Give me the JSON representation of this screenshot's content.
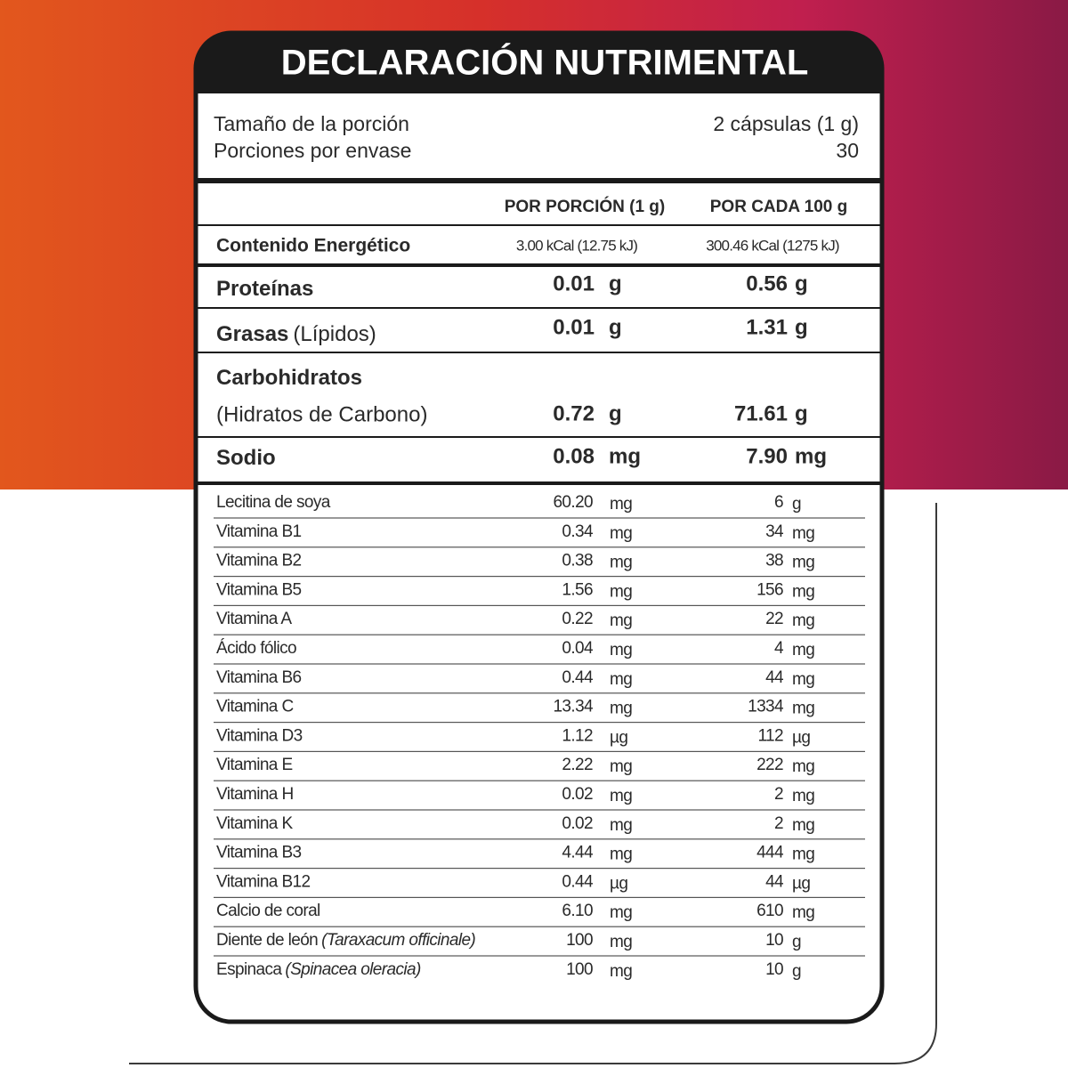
{
  "title": "DECLARACIÓN NUTRIMENTAL",
  "serving": {
    "size_label": "Tamaño de la porción",
    "size_value": "2 cápsulas (1 g)",
    "servings_label": "Porciones por envase",
    "servings_value": "30"
  },
  "columns": [
    "POR PORCIÓN (1 g)",
    "POR CADA 100 g"
  ],
  "energy": {
    "label": "Contenido Energético",
    "portion": "3.00 kCal (12.75 kJ)",
    "per100": "300.46 kCal (1275 kJ)"
  },
  "macros": [
    {
      "label": "Proteínas",
      "portion": "0.01",
      "portion_unit": "g",
      "per100": "0.56",
      "per100_unit": "g"
    },
    {
      "label": "Grasas",
      "note": "(Lípidos)",
      "portion": "0.01",
      "portion_unit": "g",
      "per100": "1.31",
      "per100_unit": "g"
    },
    {
      "label": "Carbohidratos",
      "note": "(Hidratos de Carbono)",
      "portion": "0.72",
      "portion_unit": "g",
      "per100": "71.61",
      "per100_unit": "g"
    },
    {
      "label": "Sodio",
      "portion": "0.08",
      "portion_unit": "mg",
      "per100": "7.90",
      "per100_unit": "mg"
    }
  ],
  "rows": [
    {
      "name": "Lecitina de soya",
      "portion": "60.20",
      "portion_unit": "mg",
      "per100": "6",
      "per100_unit": "g"
    },
    {
      "name": "Vitamina B1",
      "portion": "0.34",
      "portion_unit": "mg",
      "per100": "34",
      "per100_unit": "mg"
    },
    {
      "name": "Vitamina B2",
      "portion": "0.38",
      "portion_unit": "mg",
      "per100": "38",
      "per100_unit": "mg"
    },
    {
      "name": "Vitamina B5",
      "portion": "1.56",
      "portion_unit": "mg",
      "per100": "156",
      "per100_unit": "mg"
    },
    {
      "name": "Vitamina A",
      "portion": "0.22",
      "portion_unit": "mg",
      "per100": "22",
      "per100_unit": "mg"
    },
    {
      "name": "Ácido fólico",
      "portion": "0.04",
      "portion_unit": "mg",
      "per100": "4",
      "per100_unit": "mg"
    },
    {
      "name": "Vitamina B6",
      "portion": "0.44",
      "portion_unit": "mg",
      "per100": "44",
      "per100_unit": "mg"
    },
    {
      "name": "Vitamina C",
      "portion": "13.34",
      "portion_unit": "mg",
      "per100": "1334",
      "per100_unit": "mg"
    },
    {
      "name": "Vitamina D3",
      "portion": "1.12",
      "portion_unit": "µg",
      "per100": "112",
      "per100_unit": "µg"
    },
    {
      "name": "Vitamina E",
      "portion": "2.22",
      "portion_unit": "mg",
      "per100": "222",
      "per100_unit": "mg"
    },
    {
      "name": "Vitamina H",
      "portion": "0.02",
      "portion_unit": "mg",
      "per100": "2",
      "per100_unit": "mg"
    },
    {
      "name": "Vitamina K",
      "portion": "0.02",
      "portion_unit": "mg",
      "per100": "2",
      "per100_unit": "mg"
    },
    {
      "name": "Vitamina B3",
      "portion": "4.44",
      "portion_unit": "mg",
      "per100": "444",
      "per100_unit": "mg"
    },
    {
      "name": "Vitamina B12",
      "portion": "0.44",
      "portion_unit": "µg",
      "per100": "44",
      "per100_unit": "µg"
    },
    {
      "name": "Calcio de coral",
      "portion": "6.10",
      "portion_unit": "mg",
      "per100": "610",
      "per100_unit": "mg"
    },
    {
      "name": "Diente de león",
      "latin": "(Taraxacum officinale)",
      "portion": "100",
      "portion_unit": "mg",
      "per100": "10",
      "per100_unit": "g"
    },
    {
      "name": "Espinaca",
      "latin": "(Spinacea oleracia)",
      "portion": "100",
      "portion_unit": "mg",
      "per100": "10",
      "per100_unit": "g"
    }
  ]
}
